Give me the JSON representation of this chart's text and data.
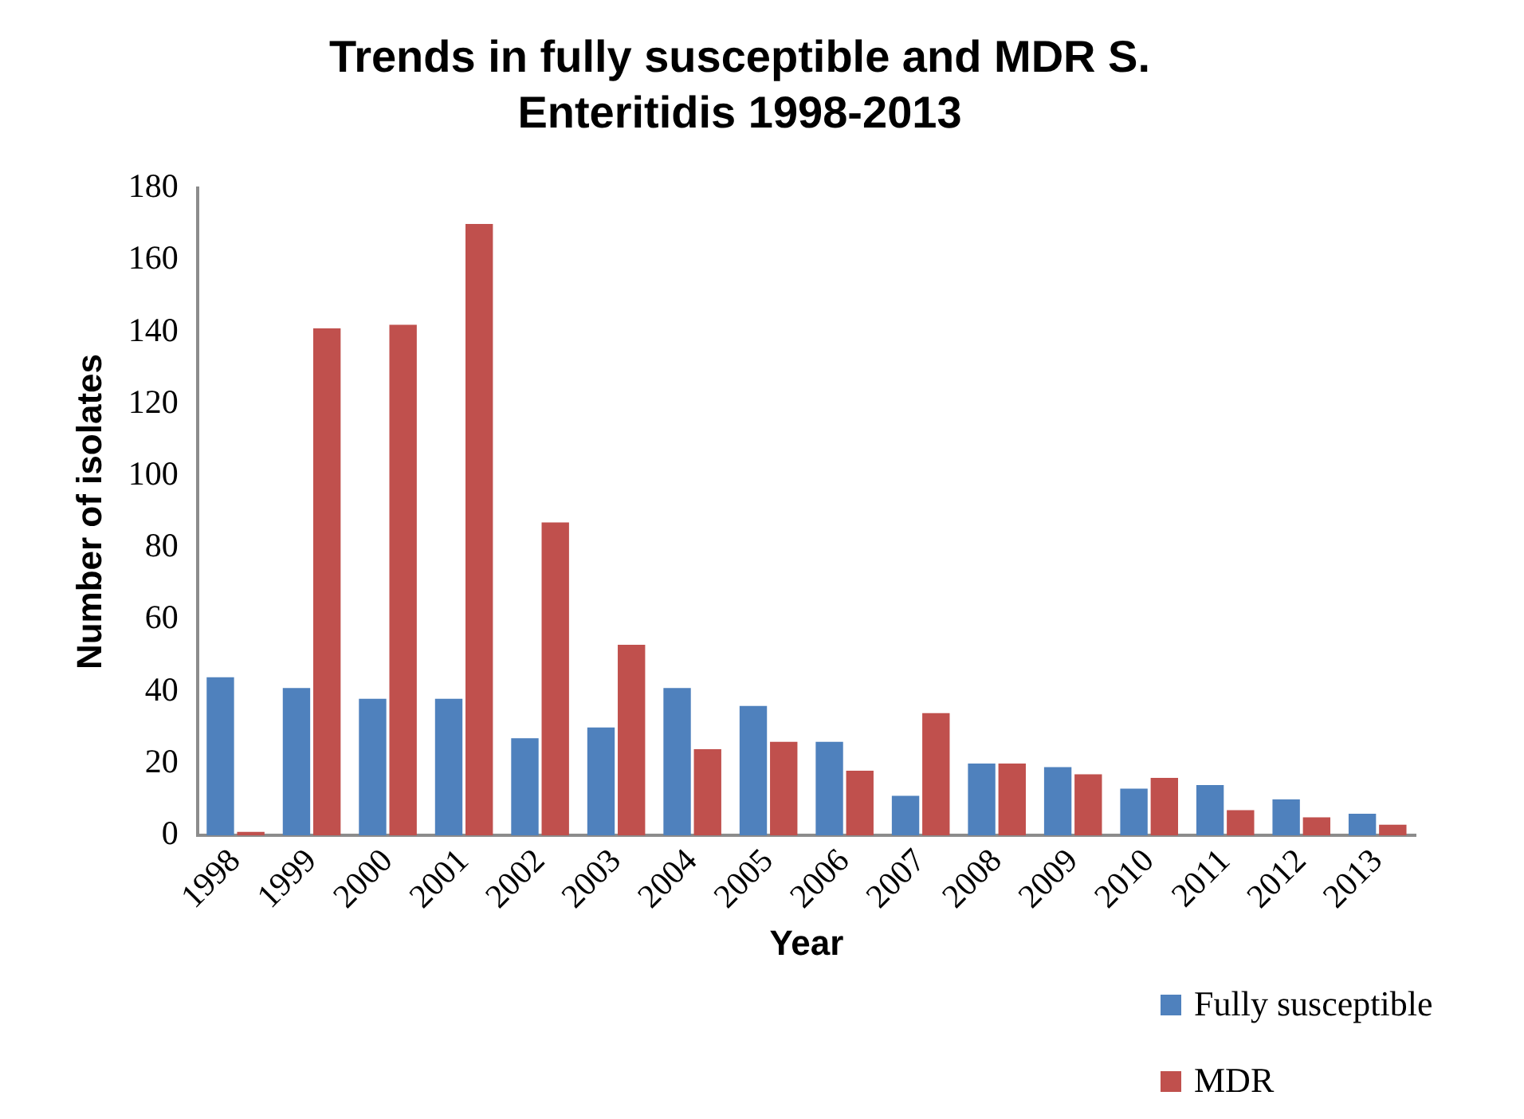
{
  "chart_data": {
    "type": "bar",
    "title": "Trends in fully susceptible and MDR S. Enteritidis 1998-2013",
    "xlabel": "Year",
    "ylabel": "Number of isolates",
    "categories": [
      "1998",
      "1999",
      "2000",
      "2001",
      "2002",
      "2003",
      "2004",
      "2005",
      "2006",
      "2007",
      "2008",
      "2009",
      "2010",
      "2011",
      "2012",
      "2013"
    ],
    "series": [
      {
        "name": "Fully susceptible",
        "color": "#4f81bd",
        "values": [
          44,
          41,
          38,
          38,
          27,
          30,
          41,
          36,
          26,
          11,
          20,
          19,
          13,
          14,
          10,
          6
        ]
      },
      {
        "name": "MDR",
        "color": "#c0504d",
        "values": [
          1,
          141,
          142,
          170,
          87,
          53,
          24,
          26,
          18,
          34,
          20,
          17,
          16,
          7,
          5,
          3
        ]
      }
    ],
    "ylim": [
      0,
      180
    ],
    "yticks": [
      0,
      20,
      40,
      60,
      80,
      100,
      120,
      140,
      160,
      180
    ],
    "grid": false,
    "legend": "bottom right"
  }
}
